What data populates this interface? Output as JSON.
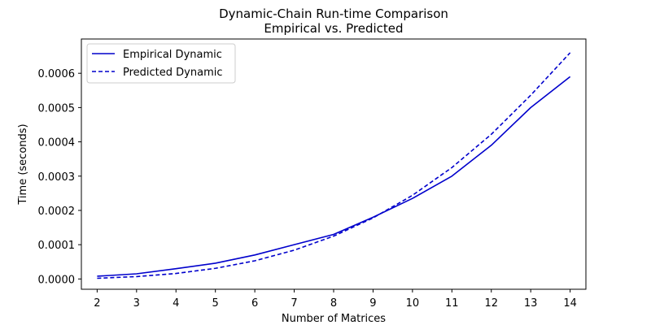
{
  "chart_data": {
    "type": "line",
    "title": "Dynamic-Chain Run-time Comparison",
    "subtitle": "Empirical vs. Predicted",
    "xlabel": "Number of Matrices",
    "ylabel": "Time (seconds)",
    "x": [
      2,
      3,
      4,
      5,
      6,
      7,
      8,
      9,
      10,
      11,
      12,
      13,
      14
    ],
    "xlim": [
      1.6,
      14.4
    ],
    "ylim": [
      -3e-05,
      0.0007
    ],
    "xticks": [
      2,
      3,
      4,
      5,
      6,
      7,
      8,
      9,
      10,
      11,
      12,
      13,
      14
    ],
    "yticks": [
      0,
      0.0001,
      0.0002,
      0.0003,
      0.0004,
      0.0005,
      0.0006
    ],
    "ytick_labels": [
      "0.0000",
      "0.0001",
      "0.0002",
      "0.0003",
      "0.0004",
      "0.0005",
      "0.0006"
    ],
    "grid": false,
    "legend": "upper-left",
    "series": [
      {
        "name": "Empirical Dynamic",
        "style": "solid",
        "color": "#0000cc",
        "values": [
          8e-06,
          1.5e-05,
          3e-05,
          4.6e-05,
          7e-05,
          0.0001,
          0.00013,
          0.00018,
          0.000235,
          0.0003,
          0.00039,
          0.0005,
          0.00059
        ]
      },
      {
        "name": "Predicted Dynamic",
        "style": "dashed",
        "color": "#0000cc",
        "values": [
          2e-06,
          7e-06,
          1.6e-05,
          3.1e-05,
          5.3e-05,
          8.4e-05,
          0.000125,
          0.000178,
          0.000244,
          0.000325,
          0.000422,
          0.000536,
          0.00066
        ]
      }
    ]
  }
}
